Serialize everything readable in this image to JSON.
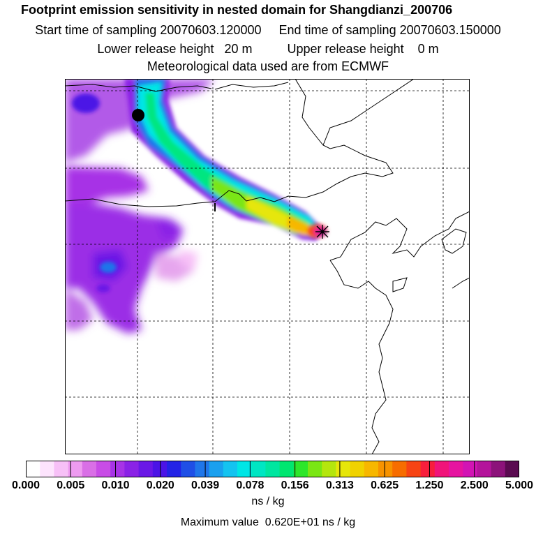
{
  "header": {
    "title": "Footprint emission sensitivity in nested domain for Shangdianzi_200706",
    "start_label": "Start time of sampling 20070603.120000",
    "end_label": "End time of sampling 20070603.150000",
    "lower_label": "Lower release height   20 m",
    "upper_label": "Upper release height    0 m",
    "met_label": "Meteorological data used are from ECMWF"
  },
  "colorbar": {
    "tick_labels": [
      "0.000",
      "0.005",
      "0.010",
      "0.020",
      "0.039",
      "0.078",
      "0.156",
      "0.313",
      "0.625",
      "1.250",
      "2.500",
      "5.000"
    ],
    "colors": [
      "#ffffff",
      "#fde4fd",
      "#f7c0f7",
      "#ee9bf0",
      "#d96fe6",
      "#c84ce6",
      "#a733e6",
      "#8a22e6",
      "#6a18e6",
      "#4b14e6",
      "#2323e6",
      "#1f4fe6",
      "#1f76ea",
      "#1aa0ee",
      "#14c3f0",
      "#00e6e6",
      "#00e6c3",
      "#00e6a0",
      "#00e670",
      "#2de62a",
      "#7ae614",
      "#b4e60e",
      "#e6e60a",
      "#f0d200",
      "#f7b700",
      "#f79300",
      "#f76d00",
      "#f74414",
      "#f71e3c",
      "#f0147a",
      "#e614a0",
      "#d214b4",
      "#b4149b",
      "#8c127a",
      "#5a0a50"
    ],
    "unit": "ns / kg",
    "max_value_text": "Maximum value  0.620E+01 ns / kg"
  },
  "map": {
    "release_marker_icon": "star-icon",
    "station_marker_icon": "dot-icon",
    "plume_colors": {
      "outer": "#9b2fe6",
      "blue": "#1f76ea",
      "cyan": "#00e6e6",
      "green": "#00e680",
      "yellow": "#e6e60a",
      "orange": "#f7b700",
      "red": "#f71e3c",
      "magenta": "#e614a0",
      "light": "#f1b3f3"
    }
  }
}
